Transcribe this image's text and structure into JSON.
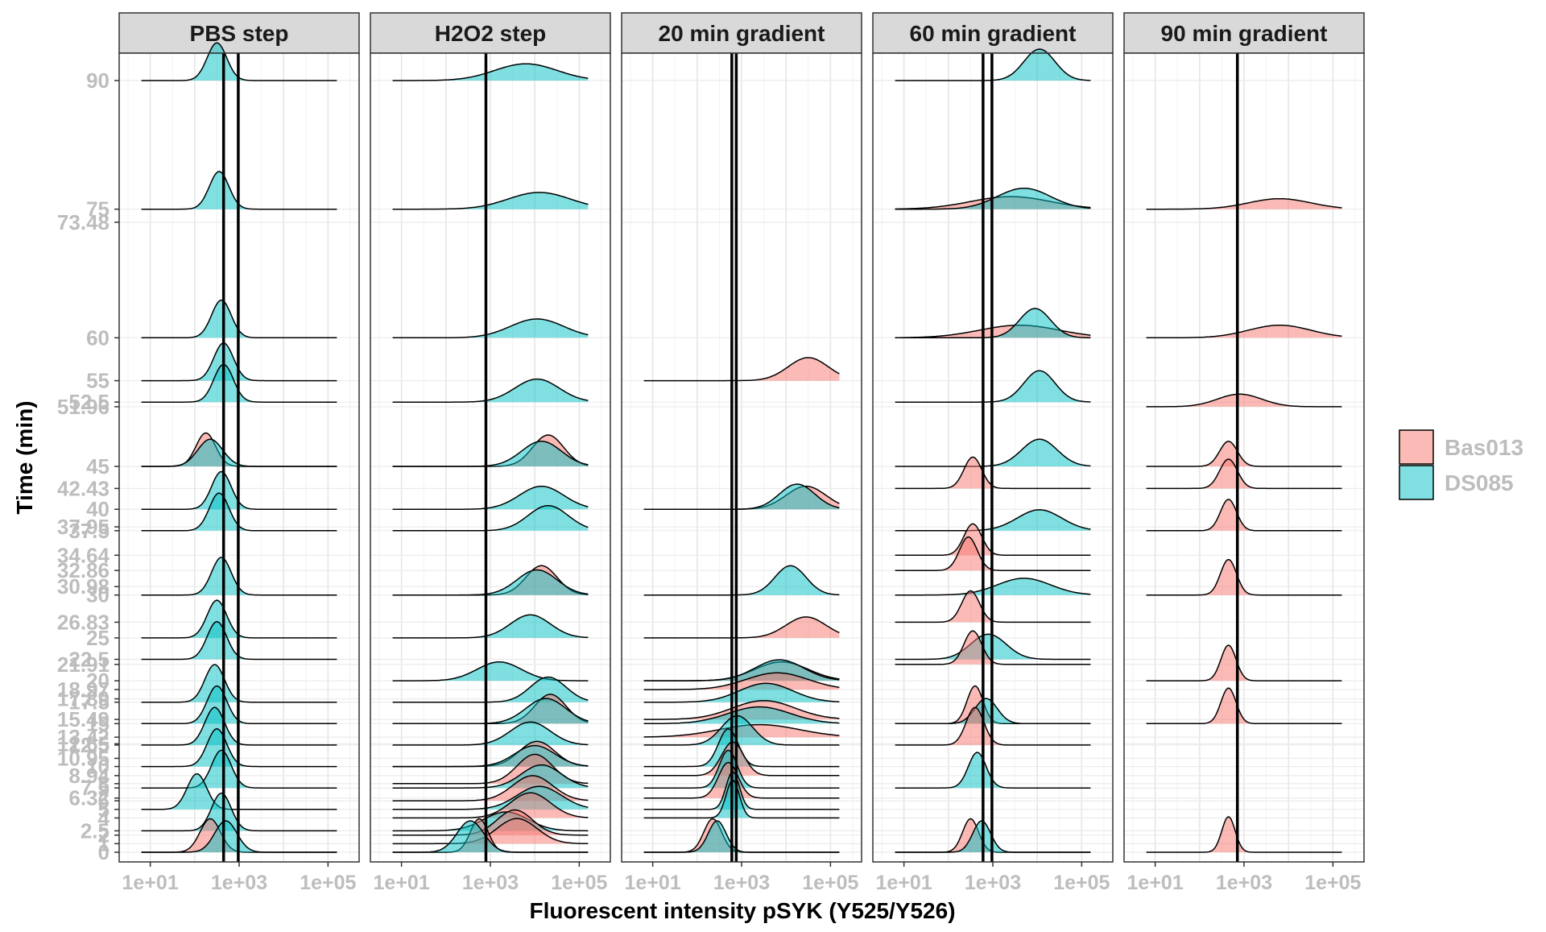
{
  "chart_data": {
    "type": "ridgeline",
    "xlabel": "Fluorescent intensity pSYK (Y525/Y526)",
    "ylabel": "Time (min)",
    "x_scale": "log10",
    "xlim_log10": [
      0.3,
      5.7
    ],
    "x_ticks": [
      1,
      3,
      5
    ],
    "x_tick_labels": [
      "1e+01",
      "1e+03",
      "1e+05"
    ],
    "y_ticks": [
      {
        "value": 0,
        "label": "0"
      },
      {
        "value": 1,
        "label": "1"
      },
      {
        "value": 2,
        "label": "2"
      },
      {
        "value": 2.5,
        "label": "2.5"
      },
      {
        "value": 4,
        "label": "4"
      },
      {
        "value": 5,
        "label": "5"
      },
      {
        "value": 6,
        "label": "6"
      },
      {
        "value": 6.32,
        "label": "6.32"
      },
      {
        "value": 7.5,
        "label": "7.5"
      },
      {
        "value": 8,
        "label": "8"
      },
      {
        "value": 8.94,
        "label": "8.94"
      },
      {
        "value": 10,
        "label": "10"
      },
      {
        "value": 10.95,
        "label": "10.95"
      },
      {
        "value": 12.5,
        "label": "12.5"
      },
      {
        "value": 12.65,
        "label": "12.65"
      },
      {
        "value": 13.42,
        "label": "13.42"
      },
      {
        "value": 15,
        "label": "15"
      },
      {
        "value": 15.49,
        "label": "15.49"
      },
      {
        "value": 17.5,
        "label": "17.5"
      },
      {
        "value": 17.89,
        "label": "17.89"
      },
      {
        "value": 18.97,
        "label": "18.97"
      },
      {
        "value": 20,
        "label": "20"
      },
      {
        "value": 21.91,
        "label": "21.91"
      },
      {
        "value": 22.5,
        "label": "22.5"
      },
      {
        "value": 25,
        "label": "25"
      },
      {
        "value": 26.83,
        "label": "26.83"
      },
      {
        "value": 30,
        "label": "30"
      },
      {
        "value": 30.98,
        "label": "30.98"
      },
      {
        "value": 32.86,
        "label": "32.86"
      },
      {
        "value": 34.64,
        "label": "34.64"
      },
      {
        "value": 37.5,
        "label": "37.5"
      },
      {
        "value": 37.95,
        "label": "37.95"
      },
      {
        "value": 40,
        "label": "40"
      },
      {
        "value": 42.43,
        "label": "42.43"
      },
      {
        "value": 45,
        "label": "45"
      },
      {
        "value": 51.96,
        "label": "51.96"
      },
      {
        "value": 52.5,
        "label": "52.5"
      },
      {
        "value": 55,
        "label": "55"
      },
      {
        "value": 60,
        "label": "60"
      },
      {
        "value": 73.48,
        "label": "73.48"
      },
      {
        "value": 75,
        "label": "75"
      },
      {
        "value": 90,
        "label": "90"
      }
    ],
    "legend": {
      "position": "right",
      "entries": [
        {
          "name": "Bas013",
          "color": "#F8766D"
        },
        {
          "name": "DS085",
          "color": "#00BFC4"
        }
      ]
    },
    "colors": {
      "Bas013": "#F8766D",
      "DS085": "#00BFC4"
    },
    "grid": true,
    "panels": [
      {
        "title": "PBS step",
        "vlines_log10": [
          2.65,
          2.98
        ],
        "ridges": [
          {
            "time": 0,
            "Bas013": [
              2.35,
              0.23,
              0.8
            ],
            "DS085": [
              2.7,
              0.25,
              0.75
            ]
          },
          {
            "time": 2.5,
            "DS085": [
              2.6,
              0.22,
              0.9
            ]
          },
          {
            "time": 5,
            "DS085": [
              2.05,
              0.22,
              0.85
            ]
          },
          {
            "time": 7.5,
            "DS085": [
              2.6,
              0.22,
              0.9
            ]
          },
          {
            "time": 10,
            "DS085": [
              2.5,
              0.22,
              0.9
            ]
          },
          {
            "time": 12.5,
            "DS085": [
              2.45,
              0.22,
              0.9
            ]
          },
          {
            "time": 15,
            "DS085": [
              2.5,
              0.22,
              0.9
            ]
          },
          {
            "time": 17.5,
            "DS085": [
              2.45,
              0.22,
              0.9
            ]
          },
          {
            "time": 22.5,
            "DS085": [
              2.5,
              0.22,
              0.9
            ]
          },
          {
            "time": 25,
            "DS085": [
              2.5,
              0.22,
              0.9
            ]
          },
          {
            "time": 30,
            "DS085": [
              2.6,
              0.22,
              0.9
            ]
          },
          {
            "time": 37.5,
            "DS085": [
              2.55,
              0.22,
              0.9
            ]
          },
          {
            "time": 40,
            "DS085": [
              2.6,
              0.22,
              0.9
            ]
          },
          {
            "time": 45,
            "Bas013": [
              2.25,
              0.22,
              0.8
            ],
            "DS085": [
              2.35,
              0.28,
              0.65
            ]
          },
          {
            "time": 52.5,
            "DS085": [
              2.65,
              0.22,
              0.9
            ]
          },
          {
            "time": 55,
            "DS085": [
              2.65,
              0.22,
              0.9
            ]
          },
          {
            "time": 60,
            "DS085": [
              2.6,
              0.22,
              0.9
            ]
          },
          {
            "time": 75,
            "DS085": [
              2.55,
              0.22,
              0.9
            ]
          },
          {
            "time": 90,
            "DS085": [
              2.5,
              0.22,
              0.9
            ]
          }
        ]
      },
      {
        "title": "H2O2 step",
        "vlines_log10": [
          2.9
        ],
        "ridges": [
          {
            "time": 0,
            "Bas013": [
              2.75,
              0.2,
              0.8
            ],
            "DS085": [
              2.55,
              0.3,
              0.75
            ]
          },
          {
            "time": 1,
            "Bas013": [
              3.6,
              0.45,
              0.6
            ]
          },
          {
            "time": 2,
            "Bas013": [
              3.55,
              0.4,
              0.6
            ]
          },
          {
            "time": 2.5,
            "DS085": [
              3.35,
              0.5,
              0.45
            ]
          },
          {
            "time": 4,
            "Bas013": [
              3.9,
              0.45,
              0.6
            ]
          },
          {
            "time": 5,
            "DS085": [
              4.1,
              0.5,
              0.55
            ]
          },
          {
            "time": 6,
            "Bas013": [
              3.95,
              0.45,
              0.6
            ]
          },
          {
            "time": 7.5,
            "DS085": [
              4.15,
              0.45,
              0.55
            ]
          },
          {
            "time": 8,
            "Bas013": [
              4.0,
              0.4,
              0.7
            ]
          },
          {
            "time": 10,
            "Bas013": [
              4.05,
              0.4,
              0.6
            ],
            "DS085": [
              4.0,
              0.45,
              0.5
            ]
          },
          {
            "time": 12.5,
            "DS085": [
              3.9,
              0.45,
              0.55
            ]
          },
          {
            "time": 15,
            "Bas013": [
              4.35,
              0.35,
              0.7
            ],
            "DS085": [
              4.25,
              0.45,
              0.6
            ]
          },
          {
            "time": 17.5,
            "DS085": [
              4.3,
              0.4,
              0.6
            ]
          },
          {
            "time": 20,
            "DS085": [
              3.2,
              0.5,
              0.45
            ]
          },
          {
            "time": 25,
            "DS085": [
              3.9,
              0.45,
              0.55
            ]
          },
          {
            "time": 30,
            "Bas013": [
              4.15,
              0.35,
              0.7
            ],
            "DS085": [
              4.05,
              0.45,
              0.6
            ]
          },
          {
            "time": 37.5,
            "DS085": [
              4.3,
              0.45,
              0.6
            ]
          },
          {
            "time": 40,
            "DS085": [
              4.15,
              0.5,
              0.55
            ]
          },
          {
            "time": 45,
            "Bas013": [
              4.3,
              0.35,
              0.75
            ],
            "DS085": [
              4.15,
              0.45,
              0.6
            ]
          },
          {
            "time": 52.5,
            "DS085": [
              4.05,
              0.5,
              0.55
            ]
          },
          {
            "time": 60,
            "DS085": [
              4.05,
              0.6,
              0.45
            ]
          },
          {
            "time": 75,
            "DS085": [
              4.1,
              0.7,
              0.4
            ]
          },
          {
            "time": 90,
            "DS085": [
              3.8,
              0.7,
              0.4
            ]
          }
        ]
      },
      {
        "title": "20 min gradient",
        "vlines_log10": [
          2.78,
          2.88
        ],
        "ridges": [
          {
            "time": 0,
            "Bas013": [
              2.35,
              0.2,
              0.8
            ],
            "DS085": [
              2.45,
              0.2,
              0.75
            ]
          },
          {
            "time": 4,
            "DS085": [
              2.8,
              0.15,
              0.9
            ]
          },
          {
            "time": 5,
            "DS085": [
              2.8,
              0.15,
              0.9
            ]
          },
          {
            "time": 6.32,
            "Bas013": [
              2.7,
              0.22,
              0.85
            ]
          },
          {
            "time": 7.5,
            "DS085": [
              2.7,
              0.2,
              0.9
            ]
          },
          {
            "time": 8.94,
            "Bas013": [
              2.8,
              0.25,
              0.8
            ]
          },
          {
            "time": 10,
            "DS085": [
              2.7,
              0.22,
              0.9
            ]
          },
          {
            "time": 12.5,
            "DS085": [
              2.9,
              0.35,
              0.7
            ]
          },
          {
            "time": 13.42,
            "Bas013": [
              3.4,
              0.9,
              0.3
            ]
          },
          {
            "time": 15,
            "DS085": [
              3.4,
              0.7,
              0.4
            ]
          },
          {
            "time": 15.49,
            "Bas013": [
              3.5,
              0.7,
              0.45
            ]
          },
          {
            "time": 17.5,
            "DS085": [
              3.55,
              0.6,
              0.45
            ]
          },
          {
            "time": 18.97,
            "Bas013": [
              3.8,
              0.7,
              0.4
            ]
          },
          {
            "time": 20,
            "Bas013": [
              3.9,
              0.6,
              0.45
            ],
            "DS085": [
              3.85,
              0.55,
              0.5
            ]
          },
          {
            "time": 25,
            "Bas013": [
              4.45,
              0.45,
              0.5
            ]
          },
          {
            "time": 30,
            "DS085": [
              4.1,
              0.35,
              0.7
            ]
          },
          {
            "time": 40,
            "Bas013": [
              4.45,
              0.45,
              0.55
            ],
            "DS085": [
              4.25,
              0.4,
              0.6
            ]
          },
          {
            "time": 55,
            "Bas013": [
              4.5,
              0.45,
              0.55
            ]
          }
        ]
      },
      {
        "title": "60 min gradient",
        "vlines_log10": [
          2.78,
          2.98
        ],
        "ridges": [
          {
            "time": 0,
            "Bas013": [
              2.5,
              0.18,
              0.8
            ],
            "DS085": [
              2.75,
              0.2,
              0.75
            ]
          },
          {
            "time": 7.5,
            "DS085": [
              2.65,
              0.2,
              0.85
            ]
          },
          {
            "time": 12.5,
            "Bas013": [
              2.6,
              0.2,
              0.9
            ]
          },
          {
            "time": 15,
            "Bas013": [
              2.6,
              0.18,
              0.9
            ],
            "DS085": [
              2.85,
              0.25,
              0.6
            ]
          },
          {
            "time": 21.91,
            "Bas013": [
              2.55,
              0.2,
              0.8
            ]
          },
          {
            "time": 22.5,
            "DS085": [
              2.9,
              0.4,
              0.6
            ]
          },
          {
            "time": 26.83,
            "Bas013": [
              2.5,
              0.2,
              0.75
            ]
          },
          {
            "time": 30,
            "DS085": [
              3.7,
              0.6,
              0.4
            ]
          },
          {
            "time": 32.86,
            "Bas013": [
              2.45,
              0.2,
              0.8
            ]
          },
          {
            "time": 34.64,
            "Bas013": [
              2.55,
              0.2,
              0.75
            ]
          },
          {
            "time": 37.5,
            "DS085": [
              4.05,
              0.5,
              0.5
            ]
          },
          {
            "time": 42.43,
            "Bas013": [
              2.55,
              0.2,
              0.75
            ]
          },
          {
            "time": 45,
            "DS085": [
              4.05,
              0.4,
              0.65
            ]
          },
          {
            "time": 52.5,
            "DS085": [
              4.05,
              0.35,
              0.75
            ]
          },
          {
            "time": 60,
            "Bas013": [
              3.6,
              0.9,
              0.3
            ],
            "DS085": [
              3.95,
              0.35,
              0.7
            ]
          },
          {
            "time": 75,
            "Bas013": [
              3.4,
              0.9,
              0.3
            ],
            "DS085": [
              3.7,
              0.6,
              0.5
            ]
          },
          {
            "time": 90,
            "DS085": [
              4.05,
              0.35,
              0.75
            ]
          }
        ]
      },
      {
        "title": "90 min gradient",
        "vlines_log10": [
          2.85
        ],
        "ridges": [
          {
            "time": 0,
            "Bas013": [
              2.65,
              0.15,
              0.85
            ]
          },
          {
            "time": 15,
            "Bas013": [
              2.65,
              0.17,
              0.85
            ]
          },
          {
            "time": 20,
            "Bas013": [
              2.65,
              0.17,
              0.85
            ]
          },
          {
            "time": 30,
            "Bas013": [
              2.65,
              0.18,
              0.85
            ]
          },
          {
            "time": 37.5,
            "Bas013": [
              2.65,
              0.18,
              0.75
            ]
          },
          {
            "time": 42.43,
            "Bas013": [
              2.65,
              0.2,
              0.7
            ]
          },
          {
            "time": 45,
            "Bas013": [
              2.65,
              0.2,
              0.6
            ]
          },
          {
            "time": 51.96,
            "Bas013": [
              2.9,
              0.5,
              0.3
            ]
          },
          {
            "time": 60,
            "Bas013": [
              3.8,
              0.7,
              0.3
            ]
          },
          {
            "time": 75,
            "Bas013": [
              3.8,
              0.7,
              0.25
            ]
          }
        ]
      }
    ]
  }
}
